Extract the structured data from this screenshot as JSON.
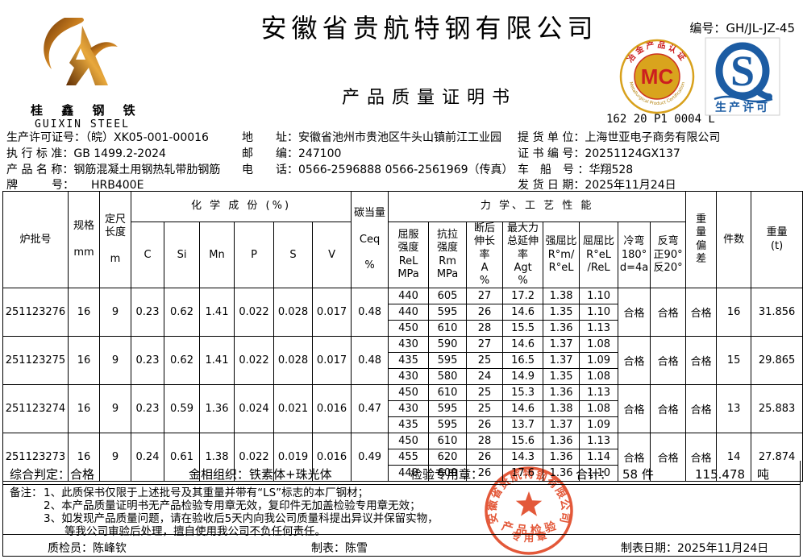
{
  "header": {
    "company_title": "安徽省贵航特钢有限公司",
    "doc_title": "产品质量证明书",
    "doc_no": "编号：GH/JL-JZ-45",
    "logo": {
      "cn": "桂 鑫 钢 铁",
      "en": "GUIXIN STEEL"
    },
    "mc_cert": {
      "arc_top": "冶金产品认证",
      "arc_bottom": "Metallurgical Product Certification",
      "center": "MC",
      "code": "162 20 P1 0004 L"
    },
    "qs_cert": {
      "letter": "S",
      "label": "生产许可"
    }
  },
  "info": {
    "left": [
      "生产许可证号：（皖）XK05-001-00016",
      "执 行 标 准：GB 1499.2-2024",
      "产 品 名 称：钢筋混凝土用钢热轧带肋钢筋",
      "牌　　　号：　　HRB400E"
    ],
    "middle": [
      "地　　址：安徽省池州市贵池区牛头山镇前江工业园",
      "邮　　编：247100",
      "电　　话：0566-2596888  0566-2561969（传真）"
    ],
    "right": [
      "提 货 单 位：上海世亚电子商务有限公司",
      "证 书 编 号：20251124GX137",
      "车　船　号 ：华翔528",
      "发 货 日 期：2025年11月24日"
    ]
  },
  "table": {
    "headers": {
      "batch": "炉批号",
      "spec": "规格\n\nmm",
      "length": "定尺\n长度\n\nm",
      "chem_group": "化 学 成 份 (%)",
      "elements": [
        "C",
        "Si",
        "Mn",
        "P",
        "S",
        "V"
      ],
      "ceq": "碳当量\n\nCeq\n\n%",
      "mech_group": "力 学、工 艺 性 能",
      "mech_cols": [
        "屈服\n强度\nReL\nMPa",
        "抗拉\n强度\nRm\nMPa",
        "断后\n伸长\n率\nA\n%",
        "最大力\n总延伸\n率\nAgt\n%",
        "强屈比\nR°m/\nR°eL",
        "屈屈比\nR°eL\n/ReL",
        "冷弯\n180°\nd=4a",
        "反弯\n正90°\n反20°"
      ],
      "weight_dev": "重\n量\n偏\n差",
      "pieces": "件数",
      "weight": "重量\n(t)"
    },
    "batches": [
      {
        "batch": "251123276",
        "spec": "16",
        "length": "9",
        "chem": [
          "0.23",
          "0.62",
          "1.41",
          "0.022",
          "0.028",
          "0.017"
        ],
        "ceq": "0.48",
        "mech": [
          [
            "440",
            "605",
            "27",
            "17.2",
            "1.38",
            "1.10"
          ],
          [
            "440",
            "595",
            "26",
            "14.6",
            "1.35",
            "1.10"
          ],
          [
            "450",
            "610",
            "28",
            "15.5",
            "1.36",
            "1.13"
          ]
        ],
        "cold_bend": "合格",
        "reverse_bend": "合格",
        "weight_deviation": "合格",
        "pieces": "16",
        "weight": "31.856"
      },
      {
        "batch": "251123275",
        "spec": "16",
        "length": "9",
        "chem": [
          "0.23",
          "0.62",
          "1.41",
          "0.022",
          "0.028",
          "0.017"
        ],
        "ceq": "0.48",
        "mech": [
          [
            "430",
            "590",
            "27",
            "14.6",
            "1.37",
            "1.08"
          ],
          [
            "435",
            "595",
            "25",
            "16.5",
            "1.37",
            "1.09"
          ],
          [
            "430",
            "580",
            "24",
            "14.9",
            "1.35",
            "1.08"
          ]
        ],
        "cold_bend": "合格",
        "reverse_bend": "合格",
        "weight_deviation": "合格",
        "pieces": "15",
        "weight": "29.865"
      },
      {
        "batch": "251123274",
        "spec": "16",
        "length": "9",
        "chem": [
          "0.23",
          "0.59",
          "1.36",
          "0.024",
          "0.021",
          "0.016"
        ],
        "ceq": "0.47",
        "mech": [
          [
            "450",
            "610",
            "25",
            "15.3",
            "1.36",
            "1.13"
          ],
          [
            "430",
            "595",
            "25",
            "14.6",
            "1.38",
            "1.08"
          ],
          [
            "435",
            "595",
            "26",
            "13.7",
            "1.37",
            "1.09"
          ]
        ],
        "cold_bend": "合格",
        "reverse_bend": "合格",
        "weight_deviation": "合格",
        "pieces": "13",
        "weight": "25.883"
      },
      {
        "batch": "251123273",
        "spec": "16",
        "length": "9",
        "chem": [
          "0.24",
          "0.61",
          "1.38",
          "0.022",
          "0.019",
          "0.016"
        ],
        "ceq": "0.49",
        "mech": [
          [
            "450",
            "610",
            "28",
            "15.6",
            "1.36",
            "1.13"
          ],
          [
            "455",
            "620",
            "26",
            "14.3",
            "1.36",
            "1.14"
          ],
          [
            "440",
            "600",
            "26",
            "17.6",
            "1.36",
            "1.10"
          ]
        ],
        "cold_bend": "合格",
        "reverse_bend": "合格",
        "weight_deviation": "合格",
        "pieces": "14",
        "weight": "27.874"
      }
    ]
  },
  "summary": {
    "judgement": "综合判定：合格",
    "metallography": "金相组织：铁素体+珠光体",
    "inspection_seal": "检验专用章：",
    "total_label": "合计：",
    "total_pieces": "58  件",
    "total_weight": "115.478　吨"
  },
  "remarks": {
    "label": "备注：",
    "lines": [
      "1、此质保书仅限于上述批号及其重量并带有“LS”标志的本厂钢材；",
      "2、本产品质量证明书无产品检验专用章无效，复印件无加盖检验专用章无效；",
      "3、如发现产品质量问题，请在验收后5天内向我公司质量科提出异议并保留实物，",
      "等我公司审验后处理，擅自使用我公司不负任何责任。"
    ]
  },
  "footer": {
    "inspector": "质检员：陈峰钦",
    "tabulator": "制表：陈雪",
    "date": "制表日期：2025年11月24日"
  },
  "stamp": {
    "company": "安徽省贵航特钢有限公司",
    "line1": "产 品 检 验",
    "line2": "专 用 章"
  },
  "colors": {
    "stamp_red": "#e14a28",
    "mc_gold": "#d8a11c",
    "mc_red": "#cc1f1f",
    "qs_blue": "#1c5ca3",
    "logo_gold_dark": "#6b3305",
    "logo_gold_light": "#f2b956"
  }
}
